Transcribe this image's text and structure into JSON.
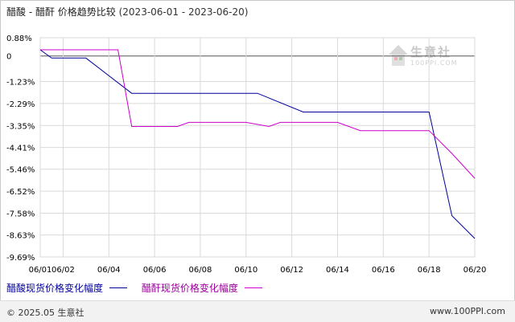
{
  "title": {
    "main": "醋酸 - 醋酐 价格趋势比较",
    "range": "(2023-06-01 - 2023-06-20)"
  },
  "watermark": {
    "brand": "生意社",
    "site": "100PPI.COM"
  },
  "footer": {
    "left": "© 2025.05 生意社",
    "right": "www.100PPI.com"
  },
  "colors": {
    "series_a": "#000099",
    "series_b": "#CC00CC",
    "grid": "#d9d9d9",
    "axis": "#000000"
  },
  "chart_data": {
    "type": "line",
    "title": "醋酸 - 醋酐 价格趋势比较",
    "ylim": [
      -9.69,
      0.88
    ],
    "y_ticks": [
      "0.88%",
      "0",
      "-1.23%",
      "-2.29%",
      "-3.35%",
      "-4.41%",
      "-5.46%",
      "-6.52%",
      "-7.58%",
      "-8.63%",
      "-9.69%"
    ],
    "y_tick_values": [
      0.88,
      0,
      -1.23,
      -2.29,
      -3.35,
      -4.41,
      -5.46,
      -6.52,
      -7.58,
      -8.63,
      -9.69
    ],
    "x_ticks": [
      "06/01",
      "06/02",
      "06/04",
      "06/06",
      "06/08",
      "06/10",
      "06/12",
      "06/14",
      "06/16",
      "06/18",
      "06/20"
    ],
    "series": [
      {
        "name": "醋酸现货价格变化幅度",
        "color": "#000099",
        "points": [
          [
            "06/01",
            0.3
          ],
          [
            "06/01.5",
            -0.1
          ],
          [
            "06/03",
            -0.1
          ],
          [
            "06/05",
            -1.8
          ],
          [
            "06/10.5",
            -1.8
          ],
          [
            "06/12.5",
            -2.7
          ],
          [
            "06/18",
            -2.7
          ],
          [
            "06/19",
            -7.7
          ],
          [
            "06/20",
            -8.8
          ]
        ]
      },
      {
        "name": "醋酐现货价格变化幅度",
        "color": "#CC00CC",
        "points": [
          [
            "06/01",
            0.3
          ],
          [
            "06/04.4",
            0.3
          ],
          [
            "06/05",
            -3.4
          ],
          [
            "06/07",
            -3.4
          ],
          [
            "06/07.5",
            -3.2
          ],
          [
            "06/10",
            -3.2
          ],
          [
            "06/11",
            -3.4
          ],
          [
            "06/11.5",
            -3.2
          ],
          [
            "06/14",
            -3.2
          ],
          [
            "06/15",
            -3.6
          ],
          [
            "06/18",
            -3.6
          ],
          [
            "06/19",
            -4.7
          ],
          [
            "06/20",
            -5.9
          ]
        ]
      }
    ]
  }
}
